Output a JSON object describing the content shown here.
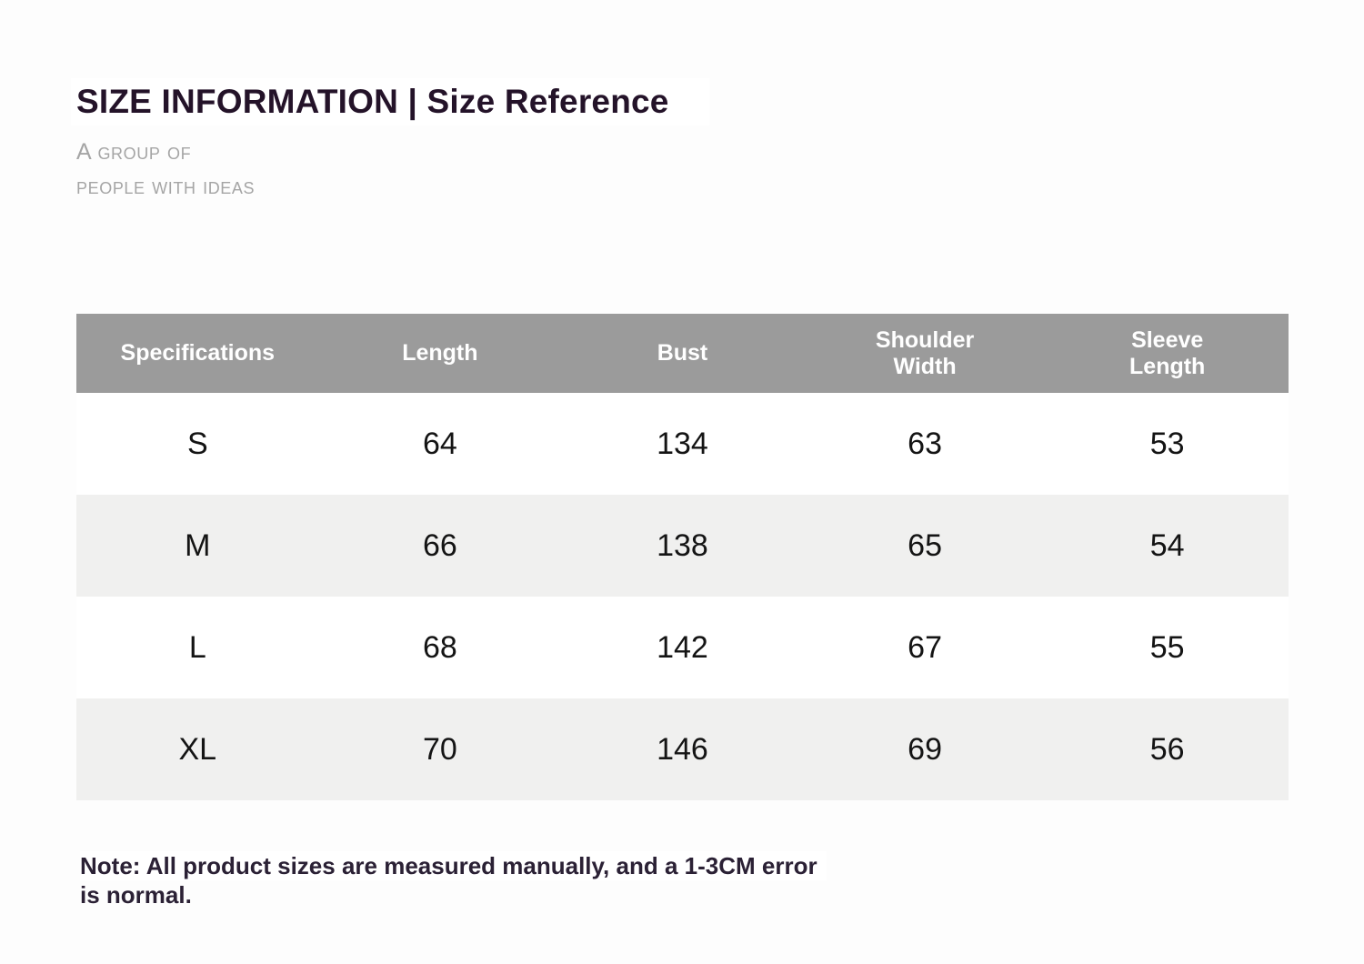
{
  "title": "SIZE INFORMATION | Size Reference",
  "tagline": {
    "line1": "A group of",
    "line2": "people with ideas"
  },
  "table": {
    "columns": [
      "Specifications",
      "Length",
      "Bust",
      "Shoulder Width",
      "Sleeve Length"
    ],
    "rows": [
      {
        "cells": [
          "S",
          "64",
          "134",
          "63",
          "53"
        ]
      },
      {
        "cells": [
          "M",
          "66",
          "138",
          "65",
          "54"
        ]
      },
      {
        "cells": [
          "L",
          "68",
          "142",
          "67",
          "55"
        ]
      },
      {
        "cells": [
          "XL",
          "70",
          "146",
          "69",
          "56"
        ]
      }
    ]
  },
  "note": {
    "line1": "Note: All product sizes are measured manually, and a 1-3CM error",
    "line2": "is normal."
  },
  "colors": {
    "page_background": "#fdfdfd",
    "highlight_box": "#ffffff",
    "title_text": "#241329",
    "tagline_text": "#a5a5a5",
    "table_header_background": "#9b9b9b",
    "table_header_text": "#ffffff",
    "row_stripe_background": "#f0f0ef",
    "row_plain_background": "#ffffff",
    "body_text": "#141414",
    "note_text": "#2b2135"
  }
}
